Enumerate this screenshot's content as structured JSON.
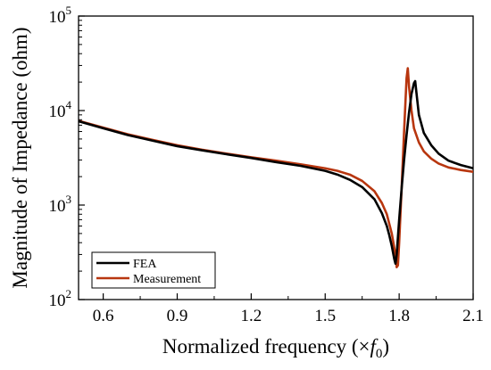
{
  "chart_data": {
    "type": "line",
    "title": "",
    "xlabel": "Normalized frequency (×",
    "xlabel_var": "f",
    "xlabel_sub": "0",
    "xlabel_close": ")",
    "ylabel": "Magnitude of Impedance (ohm)",
    "xlim": [
      0.5,
      2.1
    ],
    "ylim": [
      100,
      100000
    ],
    "yscale": "log",
    "x_ticks": [
      "0.6",
      "0.9",
      "1.2",
      "1.5",
      "1.8",
      "2.1"
    ],
    "y_ticks": [
      {
        "value": 100,
        "base": "10",
        "exp": "2"
      },
      {
        "value": 1000,
        "base": "10",
        "exp": "3"
      },
      {
        "value": 10000,
        "base": "10",
        "exp": "4"
      },
      {
        "value": 100000,
        "base": "10",
        "exp": "5"
      }
    ],
    "grid": false,
    "legend_position": "bottom-left",
    "series": [
      {
        "name": "FEA",
        "color": "#000000",
        "x": [
          0.5,
          0.6,
          0.7,
          0.8,
          0.9,
          1.0,
          1.1,
          1.2,
          1.3,
          1.4,
          1.5,
          1.55,
          1.6,
          1.65,
          1.7,
          1.73,
          1.75,
          1.76,
          1.77,
          1.78,
          1.785,
          1.79,
          1.8,
          1.81,
          1.82,
          1.83,
          1.84,
          1.85,
          1.86,
          1.865,
          1.87,
          1.88,
          1.9,
          1.93,
          1.96,
          2.0,
          2.05,
          2.1
        ],
        "y": [
          7700,
          6500,
          5500,
          4800,
          4200,
          3800,
          3450,
          3150,
          2850,
          2600,
          2300,
          2100,
          1850,
          1550,
          1150,
          820,
          600,
          480,
          370,
          270,
          240,
          300,
          700,
          1500,
          3000,
          5500,
          9500,
          15000,
          19500,
          20500,
          15500,
          9000,
          5800,
          4300,
          3500,
          2950,
          2650,
          2450
        ]
      },
      {
        "name": "Measurement",
        "color": "#b8360f",
        "x": [
          0.5,
          0.6,
          0.7,
          0.8,
          0.9,
          1.0,
          1.1,
          1.2,
          1.3,
          1.4,
          1.5,
          1.55,
          1.6,
          1.65,
          1.7,
          1.73,
          1.75,
          1.77,
          1.785,
          1.79,
          1.795,
          1.8,
          1.81,
          1.82,
          1.83,
          1.835,
          1.84,
          1.85,
          1.86,
          1.88,
          1.9,
          1.93,
          1.96,
          2.0,
          2.05,
          2.1
        ],
        "y": [
          7800,
          6600,
          5600,
          4900,
          4300,
          3850,
          3500,
          3200,
          2950,
          2700,
          2450,
          2300,
          2100,
          1800,
          1400,
          1050,
          800,
          500,
          300,
          220,
          230,
          400,
          1500,
          6000,
          22000,
          28000,
          18000,
          10000,
          6500,
          4600,
          3700,
          3100,
          2750,
          2500,
          2350,
          2250
        ]
      }
    ]
  }
}
